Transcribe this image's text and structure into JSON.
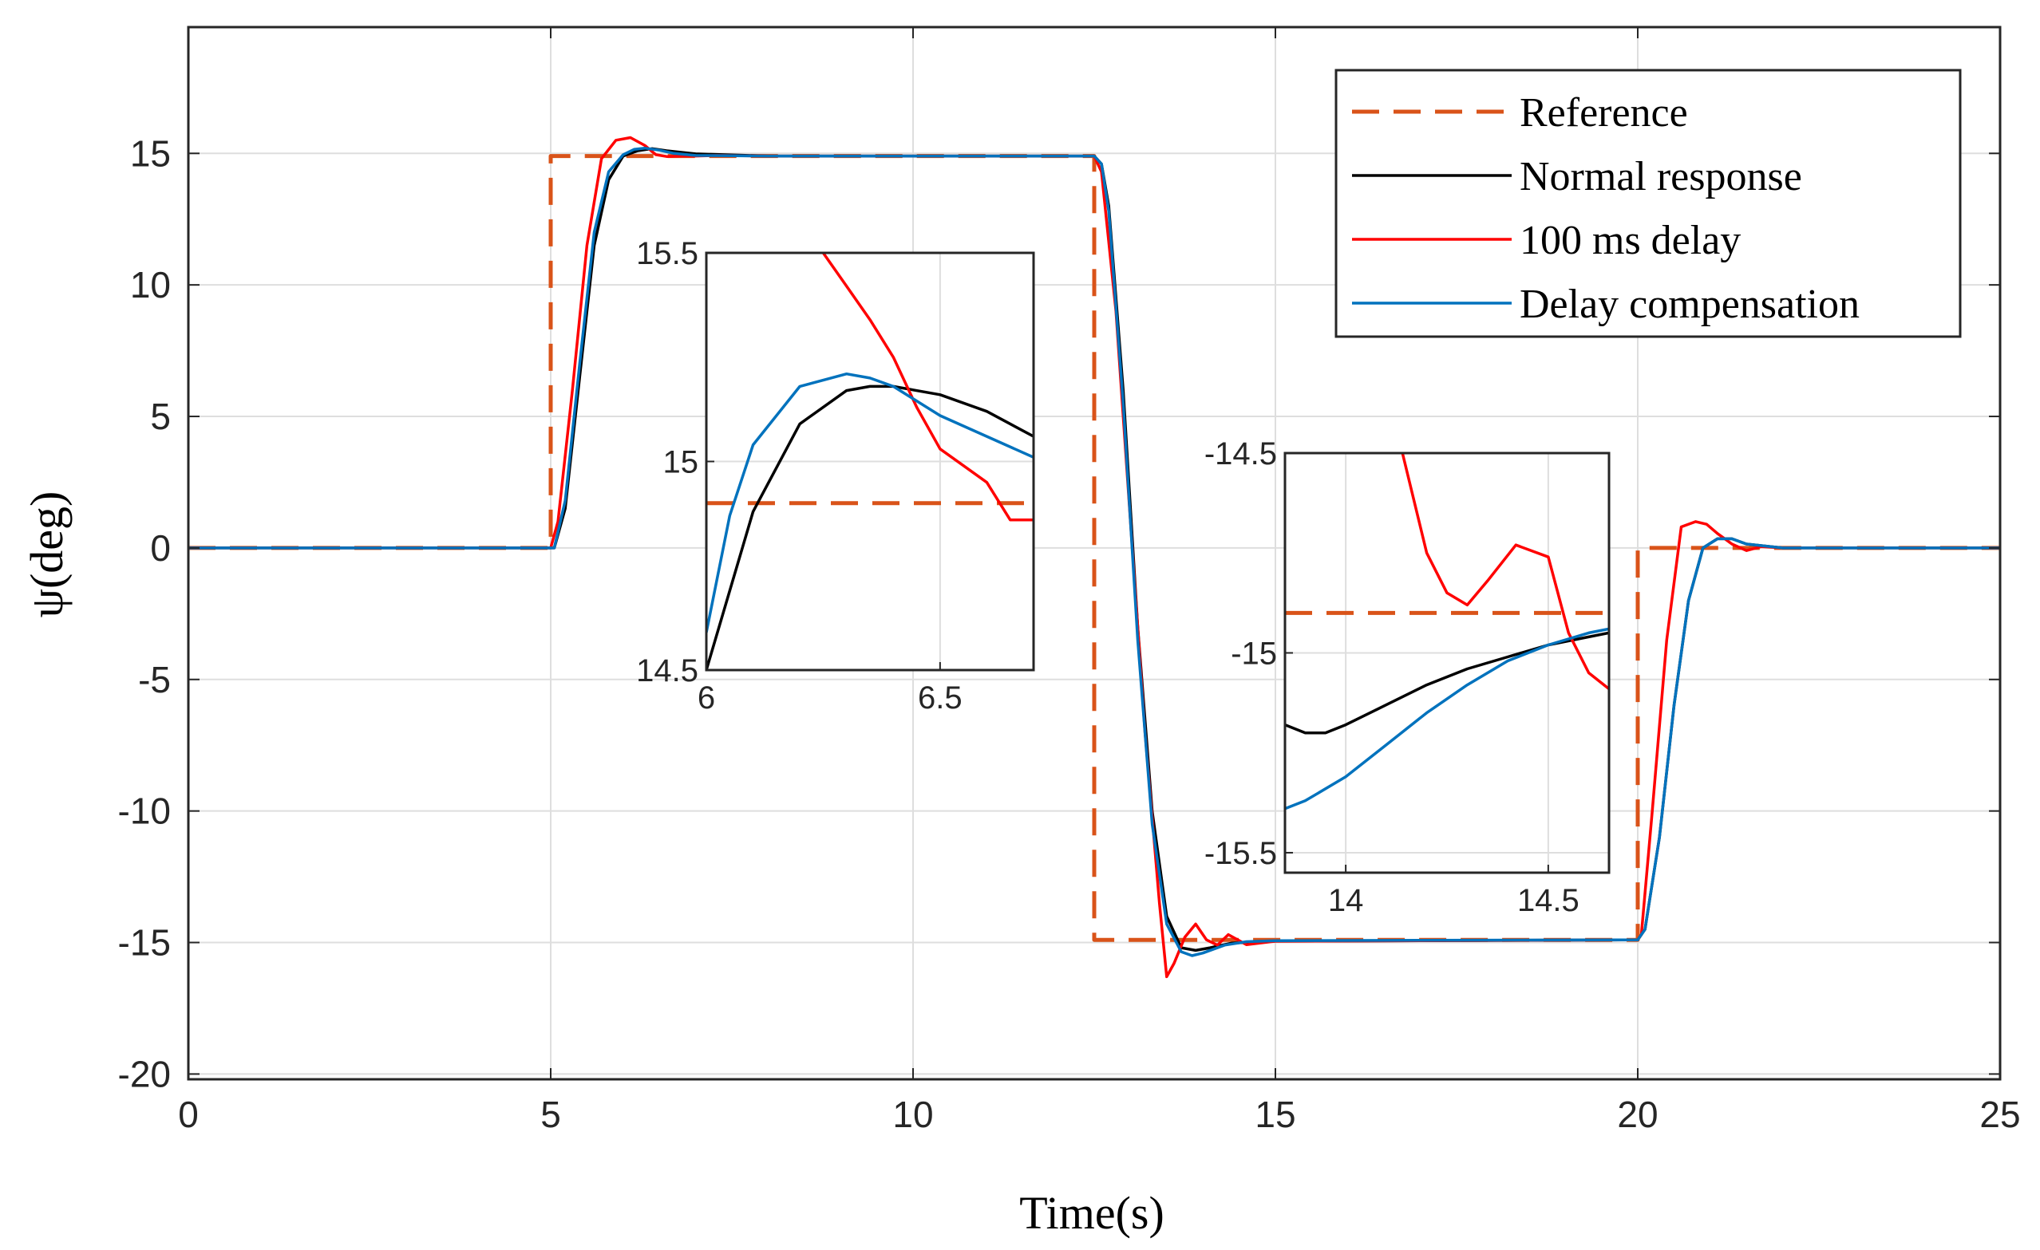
{
  "chart_data": {
    "type": "line",
    "xlabel": "Time(s)",
    "ylabel": "ψ(deg)",
    "xlim": [
      0,
      25
    ],
    "ylim": [
      -20.2,
      19.8
    ],
    "xticks": [
      0,
      5,
      10,
      15,
      20,
      25
    ],
    "yticks": [
      -20,
      -15,
      -10,
      -5,
      0,
      5,
      10,
      15
    ],
    "grid": true,
    "legend_position": "top-right",
    "series": [
      {
        "name": "Reference",
        "color": "#D95319",
        "dash": "dashed",
        "x": [
          0,
          5,
          5,
          12.5,
          12.5,
          20,
          20,
          25
        ],
        "y": [
          0,
          0,
          14.9,
          14.9,
          -14.9,
          -14.9,
          0,
          0
        ]
      },
      {
        "name": "Normal response",
        "color": "#000000",
        "dash": "solid",
        "x": [
          0,
          5.05,
          5.2,
          5.4,
          5.6,
          5.8,
          6.0,
          6.2,
          6.4,
          6.6,
          7.0,
          8,
          12.5,
          12.6,
          12.7,
          12.9,
          13.1,
          13.3,
          13.5,
          13.7,
          13.9,
          14.1,
          14.4,
          15,
          20,
          20.1,
          20.3,
          20.5,
          20.7,
          20.9,
          21.1,
          21.3,
          21.5,
          22,
          25
        ],
        "y": [
          0,
          0,
          1.5,
          6.5,
          11.5,
          14.0,
          14.9,
          15.1,
          15.18,
          15.1,
          14.98,
          14.9,
          14.9,
          14.6,
          13.0,
          6.0,
          -3.0,
          -10.0,
          -14.0,
          -15.2,
          -15.3,
          -15.2,
          -15.02,
          -14.95,
          -14.9,
          -14.5,
          -11.0,
          -6.0,
          -2.0,
          0.0,
          0.35,
          0.35,
          0.15,
          0.0,
          0.0
        ]
      },
      {
        "name": "100 ms delay",
        "color": "#FF0000",
        "dash": "solid",
        "x": [
          0,
          5.0,
          5.1,
          5.3,
          5.5,
          5.7,
          5.9,
          6.1,
          6.3,
          6.45,
          6.6,
          6.8,
          7.0,
          7.3,
          8,
          12.5,
          12.6,
          12.8,
          13.0,
          13.2,
          13.4,
          13.5,
          13.6,
          13.75,
          13.9,
          14.05,
          14.2,
          14.35,
          14.6,
          15,
          20,
          20.05,
          20.2,
          20.4,
          20.6,
          20.8,
          20.95,
          21.1,
          21.3,
          21.5,
          21.7,
          22,
          25
        ],
        "y": [
          0,
          0,
          1.0,
          6.0,
          11.5,
          14.8,
          15.5,
          15.6,
          15.3,
          14.95,
          14.88,
          14.9,
          14.9,
          14.92,
          14.9,
          14.9,
          14.3,
          9.0,
          1.0,
          -7.0,
          -13.5,
          -16.3,
          -15.8,
          -14.8,
          -14.3,
          -14.9,
          -15.1,
          -14.7,
          -15.08,
          -14.95,
          -14.9,
          -14.7,
          -10.0,
          -3.5,
          0.8,
          1.0,
          0.9,
          0.55,
          0.15,
          -0.1,
          0.05,
          0.0,
          0.0
        ]
      },
      {
        "name": "Delay compensation",
        "color": "#0072BD",
        "dash": "solid",
        "x": [
          0,
          5.05,
          5.2,
          5.4,
          5.6,
          5.8,
          6.0,
          6.15,
          6.3,
          6.5,
          6.7,
          7.0,
          8,
          12.5,
          12.6,
          12.7,
          12.9,
          13.1,
          13.3,
          13.5,
          13.7,
          13.85,
          14.0,
          14.3,
          14.6,
          15,
          20,
          20.1,
          20.3,
          20.5,
          20.7,
          20.9,
          21.1,
          21.3,
          21.5,
          22,
          25
        ],
        "y": [
          0,
          0,
          1.8,
          7.0,
          12.0,
          14.3,
          14.95,
          15.15,
          15.2,
          15.12,
          15.0,
          14.92,
          14.9,
          14.9,
          14.6,
          12.8,
          5.5,
          -3.5,
          -10.5,
          -14.3,
          -15.35,
          -15.5,
          -15.4,
          -15.1,
          -14.97,
          -14.93,
          -14.9,
          -14.5,
          -11.0,
          -6.0,
          -2.0,
          0.0,
          0.35,
          0.35,
          0.15,
          0.0,
          0.0
        ]
      }
    ],
    "insets": [
      {
        "xlim": [
          6,
          6.7
        ],
        "ylim": [
          14.5,
          15.5
        ],
        "xticks": [
          6,
          6.5
        ],
        "yticks": [
          14.5,
          15,
          15.5
        ],
        "series": [
          {
            "name": "Reference",
            "x": [
              6,
              6.7
            ],
            "y": [
              14.9,
              14.9
            ]
          },
          {
            "name": "Normal response",
            "x": [
              6.0,
              6.1,
              6.2,
              6.3,
              6.35,
              6.4,
              6.5,
              6.6,
              6.7
            ],
            "y": [
              14.5,
              14.88,
              15.09,
              15.17,
              15.18,
              15.18,
              15.16,
              15.12,
              15.06
            ]
          },
          {
            "name": "100 ms delay",
            "x": [
              6.25,
              6.3,
              6.35,
              6.4,
              6.45,
              6.5,
              6.55,
              6.6,
              6.65,
              6.7
            ],
            "y": [
              15.5,
              15.42,
              15.34,
              15.25,
              15.13,
              15.03,
              14.99,
              14.95,
              14.86,
              14.86
            ]
          },
          {
            "name": "Delay compensation",
            "x": [
              6.0,
              6.05,
              6.1,
              6.2,
              6.3,
              6.35,
              6.4,
              6.5,
              6.6,
              6.7
            ],
            "y": [
              14.59,
              14.87,
              15.04,
              15.18,
              15.21,
              15.2,
              15.18,
              15.11,
              15.06,
              15.01
            ]
          }
        ]
      },
      {
        "xlim": [
          13.85,
          14.65
        ],
        "ylim": [
          -15.55,
          -14.5
        ],
        "xticks": [
          14,
          14.5
        ],
        "yticks": [
          -15.5,
          -15,
          -14.5
        ],
        "series": [
          {
            "name": "Reference",
            "x": [
              13.85,
              14.65
            ],
            "y": [
              -14.9,
              -14.9
            ]
          },
          {
            "name": "Normal response",
            "x": [
              13.85,
              13.9,
              13.95,
              14.0,
              14.1,
              14.2,
              14.3,
              14.4,
              14.5,
              14.6,
              14.65
            ],
            "y": [
              -15.18,
              -15.2,
              -15.2,
              -15.18,
              -15.13,
              -15.08,
              -15.04,
              -15.01,
              -14.98,
              -14.96,
              -14.95
            ]
          },
          {
            "name": "100 ms delay",
            "x": [
              14.14,
              14.2,
              14.25,
              14.3,
              14.35,
              14.42,
              14.5,
              14.55,
              14.6,
              14.65
            ],
            "y": [
              -14.5,
              -14.75,
              -14.85,
              -14.88,
              -14.82,
              -14.73,
              -14.76,
              -14.95,
              -15.05,
              -15.09
            ]
          },
          {
            "name": "Delay compensation",
            "x": [
              13.85,
              13.9,
              14.0,
              14.1,
              14.2,
              14.3,
              14.4,
              14.5,
              14.6,
              14.65
            ],
            "y": [
              -15.39,
              -15.37,
              -15.31,
              -15.23,
              -15.15,
              -15.08,
              -15.02,
              -14.98,
              -14.95,
              -14.94
            ]
          }
        ]
      }
    ]
  }
}
